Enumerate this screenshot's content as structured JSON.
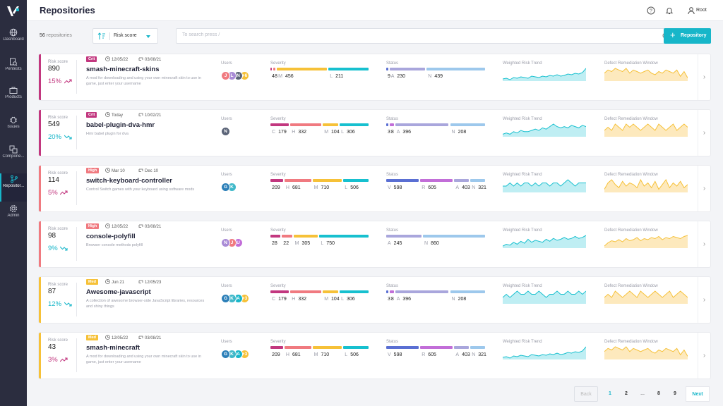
{
  "app": {
    "title": "Repositories",
    "user": "Root"
  },
  "nav": [
    {
      "label": "Dashboard",
      "icon": "globe-icon"
    },
    {
      "label": "Pentests",
      "icon": "search-doc-icon"
    },
    {
      "label": "Products",
      "icon": "briefcase-icon"
    },
    {
      "label": "Issues",
      "icon": "bug-icon"
    },
    {
      "label": "Compone...",
      "icon": "components-icon"
    },
    {
      "label": "Repositor...",
      "icon": "branch-icon",
      "active": true
    },
    {
      "label": "Admin",
      "icon": "gear-icon"
    }
  ],
  "toolbar": {
    "count": "56",
    "count_suffix": "repositories",
    "sort_label": "Risk score",
    "search_placeholder": "To search press /",
    "add_label": "Repository"
  },
  "labels": {
    "risk": "Risk score",
    "users": "Users",
    "severity": "Severity",
    "status": "Status",
    "trend": "Weighted Risk Trend",
    "window": "Defect Remediation Window"
  },
  "colors": {
    "crit": "#c2377f",
    "high": "#f07a80",
    "med": "#f6c138",
    "teal": "#17b6c9",
    "sev_c": "#c2377f",
    "sev_h": "#f07a80",
    "sev_m": "#f6c138",
    "sev_l": "#17c0cf",
    "st_v": "#5a6fd3",
    "st_r": "#c26ed8",
    "st_a": "#a9a6dc",
    "st_n": "#9dc8ec"
  },
  "repos": [
    {
      "level": "Crit",
      "score": "890",
      "change": "15%",
      "trend": "up",
      "created": "12/05/22",
      "updated": "03/08/21",
      "name": "smash-minecraft-skins",
      "desc": "A mod for downloading and using your own minecraft skin to use in game, just enter your username",
      "users": [
        {
          "i": "J",
          "c": "#f07a80"
        },
        {
          "i": "L",
          "c": "#a98bd6"
        },
        {
          "i": "N",
          "c": "#5b6478"
        },
        {
          "i": "+6",
          "c": "#f6c138"
        }
      ],
      "severity": [
        {
          "k": "",
          "v": "4",
          "w": 1
        },
        {
          "k": "",
          "v": "8",
          "w": 2
        },
        {
          "k": "M",
          "v": "456",
          "w": 46
        },
        {
          "k": "L",
          "v": "211",
          "w": 37
        }
      ],
      "status": [
        {
          "k": "",
          "v": "9",
          "w": 2
        },
        {
          "k": "A",
          "v": "230",
          "w": 38
        },
        {
          "k": "N",
          "v": "439",
          "w": 62
        }
      ],
      "trend_values": [
        5,
        6,
        4,
        7,
        6,
        8,
        7,
        6,
        9,
        8,
        7,
        9,
        8,
        10,
        9,
        11,
        9,
        10,
        12,
        11,
        13,
        12,
        14,
        20
      ],
      "window_values": [
        12,
        14,
        13,
        15,
        14,
        13,
        15,
        12,
        14,
        13,
        12,
        13,
        14,
        12,
        11,
        13,
        12,
        14,
        13,
        12,
        14,
        10,
        13,
        9
      ]
    },
    {
      "level": "Crit",
      "score": "549",
      "change": "20%",
      "trend": "down",
      "created": "Today",
      "updated": "10/02/21",
      "name": "babel-plugin-dva-hmr",
      "desc": "Hmr babel plugin for dva",
      "users": [
        {
          "i": "N",
          "c": "#5b6478"
        }
      ],
      "severity": [
        {
          "k": "C",
          "v": "179",
          "w": 18
        },
        {
          "k": "H",
          "v": "332",
          "w": 30
        },
        {
          "k": "M",
          "v": "104",
          "w": 15
        },
        {
          "k": "L",
          "v": "306",
          "w": 28
        }
      ],
      "status": [
        {
          "k": "",
          "v": "3",
          "w": 2
        },
        {
          "k": "",
          "v": "8",
          "w": 4
        },
        {
          "k": "A",
          "v": "396",
          "w": 52
        },
        {
          "k": "N",
          "v": "208",
          "w": 34
        }
      ],
      "trend_values": [
        6,
        7,
        6,
        8,
        7,
        9,
        8,
        8,
        9,
        10,
        9,
        11,
        10,
        12,
        14,
        12,
        11,
        12,
        11,
        13,
        12,
        11,
        13,
        12
      ],
      "window_values": [
        10,
        11,
        10,
        12,
        11,
        10,
        12,
        11,
        12,
        11,
        10,
        11,
        12,
        11,
        10,
        12,
        11,
        10,
        11,
        12,
        10,
        11,
        12,
        11
      ]
    },
    {
      "level": "High",
      "score": "114",
      "change": "5%",
      "trend": "up",
      "created": "Mar 10",
      "updated": "Dec 10",
      "name": "switch-keyboard-controller",
      "desc": "Control Switch games with your keyboard using software mods",
      "users": [
        {
          "i": "G",
          "c": "#2c7fb8"
        },
        {
          "i": "K",
          "c": "#3fb8c9"
        }
      ],
      "severity": [
        {
          "k": "",
          "v": "209",
          "w": 18
        },
        {
          "k": "H",
          "v": "681",
          "w": 38
        },
        {
          "k": "M",
          "v": "710",
          "w": 42
        },
        {
          "k": "L",
          "v": "506",
          "w": 36
        }
      ],
      "status": [
        {
          "k": "V",
          "v": "598",
          "w": 40
        },
        {
          "k": "R",
          "v": "605",
          "w": 40
        },
        {
          "k": "A",
          "v": "403",
          "w": 18
        },
        {
          "k": "N",
          "v": "321",
          "w": 18
        }
      ],
      "trend_values": [
        11,
        11,
        12,
        11,
        12,
        11,
        12,
        12,
        11,
        12,
        11,
        12,
        12,
        11,
        12,
        12,
        11,
        12,
        13,
        12,
        11,
        12,
        12,
        12
      ],
      "window_values": [
        8,
        12,
        14,
        11,
        9,
        13,
        10,
        12,
        11,
        9,
        14,
        10,
        12,
        9,
        13,
        8,
        11,
        14,
        9,
        12,
        10,
        13,
        9,
        11
      ]
    },
    {
      "level": "High",
      "score": "98",
      "change": "9%",
      "trend": "down",
      "created": "12/05/22",
      "updated": "03/08/21",
      "name": "console-polyfill",
      "desc": "Browser console methods polyfill",
      "users": [
        {
          "i": "N",
          "c": "#a98bd6"
        },
        {
          "i": "J",
          "c": "#f07a80"
        },
        {
          "i": "U",
          "c": "#c26ed8"
        }
      ],
      "severity": [
        {
          "k": "",
          "v": "28",
          "w": 14
        },
        {
          "k": "",
          "v": "22",
          "w": 14
        },
        {
          "k": "M",
          "v": "305",
          "w": 34
        },
        {
          "k": "L",
          "v": "750",
          "w": 68
        }
      ],
      "status": [
        {
          "k": "A",
          "v": "245",
          "w": 50
        },
        {
          "k": "N",
          "v": "860",
          "w": 88
        }
      ],
      "trend_values": [
        5,
        7,
        6,
        9,
        7,
        10,
        8,
        12,
        9,
        11,
        10,
        9,
        12,
        10,
        13,
        11,
        12,
        14,
        12,
        13,
        15,
        13,
        14,
        16
      ],
      "window_values": [
        6,
        9,
        11,
        10,
        12,
        10,
        13,
        11,
        12,
        14,
        11,
        13,
        12,
        14,
        13,
        15,
        12,
        14,
        13,
        15,
        14,
        13,
        15,
        16
      ]
    },
    {
      "level": "Med",
      "score": "87",
      "change": "12%",
      "trend": "down",
      "created": "Jun 21",
      "updated": "12/05/23",
      "name": "Awesome-javascript",
      "desc": "A collection of awesome browser-side JavaScript libraries, resources and shiny things",
      "users": [
        {
          "i": "G",
          "c": "#2c7fb8"
        },
        {
          "i": "K",
          "c": "#3fb8c9"
        },
        {
          "i": "A",
          "c": "#17b6c9"
        },
        {
          "i": "+3",
          "c": "#f6c138"
        }
      ],
      "severity": [
        {
          "k": "C",
          "v": "179",
          "w": 18
        },
        {
          "k": "H",
          "v": "332",
          "w": 30
        },
        {
          "k": "M",
          "v": "104",
          "w": 15
        },
        {
          "k": "L",
          "v": "306",
          "w": 28
        }
      ],
      "status": [
        {
          "k": "",
          "v": "3",
          "w": 2
        },
        {
          "k": "",
          "v": "8",
          "w": 4
        },
        {
          "k": "A",
          "v": "396",
          "w": 52
        },
        {
          "k": "N",
          "v": "208",
          "w": 34
        }
      ],
      "trend_values": [
        11,
        12,
        11,
        12,
        13,
        12,
        12,
        13,
        12,
        12,
        13,
        12,
        11,
        12,
        12,
        13,
        12,
        12,
        13,
        12,
        12,
        13,
        12,
        13
      ],
      "window_values": [
        12,
        13,
        12,
        14,
        13,
        12,
        13,
        14,
        13,
        12,
        14,
        13,
        12,
        13,
        14,
        13,
        12,
        13,
        14,
        12,
        13,
        14,
        13,
        12
      ]
    },
    {
      "level": "Med",
      "score": "43",
      "change": "3%",
      "trend": "up",
      "created": "12/05/22",
      "updated": "03/08/21",
      "name": "smash-minecraft",
      "desc": "A mod for downloading and using your own minecraft skin to use in game, just enter your username",
      "users": [
        {
          "i": "G",
          "c": "#2c7fb8"
        },
        {
          "i": "K",
          "c": "#3fb8c9"
        },
        {
          "i": "A",
          "c": "#17b6c9"
        },
        {
          "i": "+3",
          "c": "#f6c138"
        }
      ],
      "severity": [
        {
          "k": "",
          "v": "209",
          "w": 18
        },
        {
          "k": "H",
          "v": "681",
          "w": 38
        },
        {
          "k": "M",
          "v": "710",
          "w": 42
        },
        {
          "k": "L",
          "v": "506",
          "w": 36
        }
      ],
      "status": [
        {
          "k": "V",
          "v": "598",
          "w": 40
        },
        {
          "k": "R",
          "v": "605",
          "w": 40
        },
        {
          "k": "A",
          "v": "403",
          "w": 18
        },
        {
          "k": "N",
          "v": "321",
          "w": 18
        }
      ],
      "trend_values": [
        5,
        6,
        4,
        7,
        6,
        8,
        7,
        6,
        9,
        8,
        7,
        9,
        8,
        10,
        9,
        11,
        9,
        10,
        12,
        11,
        13,
        12,
        14,
        20
      ],
      "window_values": [
        12,
        14,
        13,
        15,
        14,
        13,
        15,
        12,
        14,
        13,
        12,
        13,
        14,
        12,
        11,
        13,
        12,
        14,
        13,
        12,
        14,
        10,
        13,
        9
      ]
    }
  ],
  "pagination": {
    "back": "Back",
    "pages": [
      "1",
      "2",
      "...",
      "8",
      "9"
    ],
    "next": "Next"
  }
}
